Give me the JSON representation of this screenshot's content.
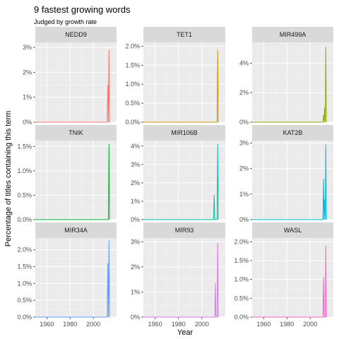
{
  "title": "9 fastest growing words",
  "subtitle": "Judged by growth rate",
  "chart_data": {
    "type": "line",
    "title": "9 fastest growing words",
    "subtitle": "Judged by growth rate",
    "xlabel": "Year",
    "ylabel": "Percentage of titles containing this term",
    "xlim": [
      1950,
      2020
    ],
    "xticks": [
      1960,
      1980,
      2000
    ],
    "grid": true,
    "facets": [
      {
        "name": "NEDD9",
        "color": "#F8766D",
        "ylim": [
          0,
          3.2
        ],
        "yticks": [
          {
            "v": 0,
            "label": "0%"
          },
          {
            "v": 1,
            "label": "1%"
          },
          {
            "v": 2,
            "label": "2%"
          },
          {
            "v": 3,
            "label": "3%"
          }
        ],
        "x": [
          1950,
          2010,
          2011,
          2012,
          2012.5,
          2013,
          2013.5,
          2014
        ],
        "y": [
          0,
          0,
          0,
          0,
          1.5,
          0,
          2.9,
          0
        ]
      },
      {
        "name": "TET1",
        "color": "#D39200",
        "ylim": [
          0,
          2.1
        ],
        "yticks": [
          {
            "v": 0,
            "label": "0.0%"
          },
          {
            "v": 0.5,
            "label": "0.5%"
          },
          {
            "v": 1,
            "label": "1.0%"
          },
          {
            "v": 1.5,
            "label": "1.5%"
          },
          {
            "v": 2,
            "label": "2.0%"
          }
        ],
        "x": [
          1950,
          2012,
          2013,
          2013.5,
          2014
        ],
        "y": [
          0,
          0,
          0,
          1.9,
          0
        ]
      },
      {
        "name": "MIR499A",
        "color": "#93AA00",
        "ylim": [
          0,
          5.4
        ],
        "yticks": [
          {
            "v": 0,
            "label": "0%"
          },
          {
            "v": 2,
            "label": "2%"
          },
          {
            "v": 4,
            "label": "4%"
          }
        ],
        "x": [
          1950,
          2010,
          2011,
          2011.5,
          2012,
          2012.5,
          2013,
          2013.5,
          2014
        ],
        "y": [
          0,
          0,
          0,
          0.5,
          0,
          1.0,
          0,
          5.1,
          0
        ]
      },
      {
        "name": "TNIK",
        "color": "#00BA38",
        "ylim": [
          0,
          1.62
        ],
        "yticks": [
          {
            "v": 0,
            "label": "0.0%"
          },
          {
            "v": 0.5,
            "label": "0.5%"
          },
          {
            "v": 1,
            "label": "1.0%"
          },
          {
            "v": 1.5,
            "label": "1.5%"
          }
        ],
        "x": [
          1950,
          2012,
          2013,
          2013.5,
          2014
        ],
        "y": [
          0,
          0,
          0,
          1.55,
          0
        ]
      },
      {
        "name": "MIR106B",
        "color": "#00C19F",
        "ylim": [
          0,
          4.3
        ],
        "yticks": [
          {
            "v": 0,
            "label": "0%"
          },
          {
            "v": 1,
            "label": "1%"
          },
          {
            "v": 2,
            "label": "2%"
          },
          {
            "v": 3,
            "label": "3%"
          },
          {
            "v": 4,
            "label": "4%"
          }
        ],
        "x": [
          1950,
          2009,
          2010,
          2010.5,
          2011,
          2013,
          2013.5,
          2014
        ],
        "y": [
          0,
          0,
          0,
          1.35,
          0,
          0,
          4.1,
          0
        ]
      },
      {
        "name": "KAT2B",
        "color": "#00B9E3",
        "ylim": [
          0,
          3.1
        ],
        "yticks": [
          {
            "v": 0,
            "label": "0%"
          },
          {
            "v": 1,
            "label": "1%"
          },
          {
            "v": 2,
            "label": "2%"
          },
          {
            "v": 3,
            "label": "3%"
          }
        ],
        "x": [
          1950,
          2010,
          2011,
          2011.5,
          2012,
          2012.5,
          2013,
          2013.5,
          2014
        ],
        "y": [
          0,
          0,
          0,
          1.6,
          0,
          0.8,
          0,
          2.95,
          0
        ]
      },
      {
        "name": "MIR34A",
        "color": "#619CFF",
        "ylim": [
          0,
          2.35
        ],
        "yticks": [
          {
            "v": 0,
            "label": "0.0%"
          },
          {
            "v": 0.5,
            "label": "0.5%"
          },
          {
            "v": 1,
            "label": "1.0%"
          },
          {
            "v": 1.5,
            "label": "1.5%"
          },
          {
            "v": 2,
            "label": "2.0%"
          }
        ],
        "x": [
          1950,
          2011,
          2012,
          2012.5,
          2013,
          2013.5,
          2014
        ],
        "y": [
          0,
          0,
          0,
          1.6,
          0,
          2.28,
          0
        ]
      },
      {
        "name": "MIR93",
        "color": "#DB72FB",
        "ylim": [
          0,
          3.15
        ],
        "yticks": [
          {
            "v": 0,
            "label": "0%"
          },
          {
            "v": 1,
            "label": "1%"
          },
          {
            "v": 2,
            "label": "2%"
          },
          {
            "v": 3,
            "label": "3%"
          }
        ],
        "x": [
          1950,
          2010,
          2011,
          2011.5,
          2012,
          2013,
          2013.5,
          2014
        ],
        "y": [
          0,
          0,
          0,
          1.35,
          0,
          0,
          2.95,
          0
        ]
      },
      {
        "name": "WASL",
        "color": "#FF61C3",
        "ylim": [
          0,
          2.1
        ],
        "yticks": [
          {
            "v": 0,
            "label": "0.0%"
          },
          {
            "v": 0.5,
            "label": "0.5%"
          },
          {
            "v": 1,
            "label": "1.0%"
          },
          {
            "v": 1.5,
            "label": "1.5%"
          },
          {
            "v": 2,
            "label": "2.0%"
          }
        ],
        "x": [
          1950,
          2010,
          2011,
          2011.5,
          2012,
          2013,
          2013.5,
          2014
        ],
        "y": [
          0,
          0,
          0,
          1.05,
          0,
          0,
          1.9,
          0
        ]
      }
    ]
  }
}
